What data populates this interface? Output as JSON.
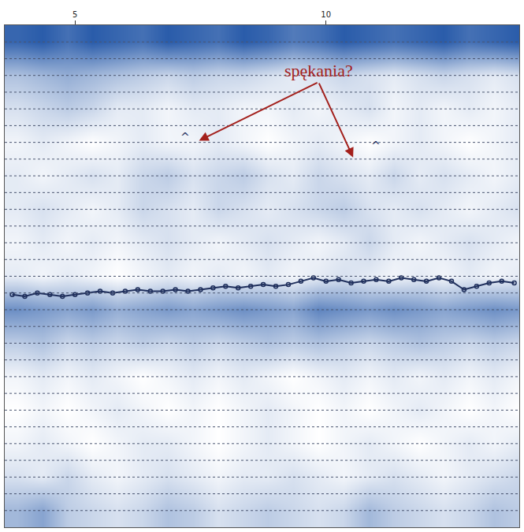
{
  "chart_data": {
    "type": "heatmap",
    "tick_labels": "x",
    "grid": true,
    "color": "#2a5caa",
    "xlim": [
      3.6,
      13.85
    ],
    "xticks": [
      5,
      10
    ],
    "ylim": [
      30,
      0
    ],
    "yticks": [
      1,
      2,
      3,
      4,
      5,
      6,
      7,
      8,
      9,
      10,
      11,
      12,
      13,
      14,
      15,
      16,
      17,
      18,
      19,
      20,
      21,
      22,
      23,
      24,
      25,
      26,
      27,
      28,
      29
    ],
    "x": [
      3.85,
      4.35,
      4.85,
      5.35,
      5.85,
      6.35,
      6.85,
      7.35,
      7.85,
      8.35,
      8.85,
      9.35,
      9.85,
      10.35,
      10.85,
      11.35,
      11.85,
      12.35,
      12.85,
      13.35,
      13.85
    ],
    "y": [
      1,
      3,
      5,
      7,
      9,
      11,
      13,
      15,
      17,
      19,
      21,
      23,
      25,
      27,
      29
    ],
    "z": [
      [
        0.85,
        0.9,
        0.8,
        0.9,
        0.85,
        0.8,
        0.9,
        0.85,
        0.8,
        0.9,
        0.85,
        0.75,
        0.8,
        0.9,
        0.85,
        0.8,
        0.85,
        0.9,
        0.8,
        0.85,
        0.9
      ],
      [
        0.4,
        0.45,
        0.5,
        0.45,
        0.4,
        0.35,
        0.3,
        0.35,
        0.3,
        0.3,
        0.25,
        0.2,
        0.25,
        0.3,
        0.25,
        0.2,
        0.25,
        0.3,
        0.25,
        0.2,
        0.25
      ],
      [
        0.25,
        0.3,
        0.35,
        0.3,
        0.2,
        0.2,
        0.15,
        0.2,
        0.2,
        0.15,
        0.15,
        0.2,
        0.15,
        0.2,
        0.25,
        0.15,
        0.2,
        0.15,
        0.2,
        0.15,
        0.2
      ],
      [
        0.15,
        0.2,
        0.15,
        0.1,
        0.15,
        0.2,
        0.15,
        0.15,
        0.2,
        0.15,
        0.1,
        0.15,
        0.2,
        0.15,
        0.1,
        0.15,
        0.2,
        0.15,
        0.1,
        0.15,
        0.2
      ],
      [
        0.2,
        0.15,
        0.2,
        0.25,
        0.2,
        0.3,
        0.35,
        0.25,
        0.3,
        0.35,
        0.25,
        0.2,
        0.3,
        0.25,
        0.2,
        0.3,
        0.2,
        0.25,
        0.2,
        0.15,
        0.2
      ],
      [
        0.2,
        0.25,
        0.2,
        0.15,
        0.2,
        0.3,
        0.25,
        0.2,
        0.3,
        0.25,
        0.2,
        0.25,
        0.3,
        0.35,
        0.25,
        0.2,
        0.25,
        0.2,
        0.15,
        0.2,
        0.25
      ],
      [
        0.15,
        0.2,
        0.15,
        0.2,
        0.15,
        0.2,
        0.25,
        0.2,
        0.15,
        0.2,
        0.25,
        0.2,
        0.15,
        0.2,
        0.3,
        0.2,
        0.15,
        0.2,
        0.25,
        0.2,
        0.15
      ],
      [
        0.2,
        0.15,
        0.2,
        0.15,
        0.1,
        0.15,
        0.2,
        0.15,
        0.2,
        0.15,
        0.2,
        0.15,
        0.2,
        0.25,
        0.2,
        0.15,
        0.2,
        0.15,
        0.2,
        0.15,
        0.2
      ],
      [
        0.65,
        0.6,
        0.55,
        0.6,
        0.5,
        0.55,
        0.6,
        0.55,
        0.6,
        0.65,
        0.6,
        0.55,
        0.7,
        0.65,
        0.6,
        0.65,
        0.6,
        0.55,
        0.6,
        0.65,
        0.6
      ],
      [
        0.35,
        0.4,
        0.3,
        0.35,
        0.3,
        0.35,
        0.3,
        0.35,
        0.3,
        0.35,
        0.4,
        0.35,
        0.4,
        0.35,
        0.3,
        0.35,
        0.4,
        0.35,
        0.3,
        0.35,
        0.3
      ],
      [
        0.15,
        0.2,
        0.15,
        0.2,
        0.15,
        0.1,
        0.15,
        0.2,
        0.15,
        0.2,
        0.15,
        0.1,
        0.15,
        0.2,
        0.15,
        0.2,
        0.15,
        0.2,
        0.15,
        0.2,
        0.15
      ],
      [
        0.1,
        0.15,
        0.1,
        0.15,
        0.2,
        0.15,
        0.1,
        0.15,
        0.1,
        0.15,
        0.2,
        0.15,
        0.1,
        0.15,
        0.1,
        0.15,
        0.2,
        0.15,
        0.1,
        0.15,
        0.1
      ],
      [
        0.15,
        0.2,
        0.15,
        0.1,
        0.15,
        0.2,
        0.2,
        0.15,
        0.1,
        0.15,
        0.2,
        0.15,
        0.1,
        0.15,
        0.2,
        0.15,
        0.1,
        0.15,
        0.2,
        0.15,
        0.2
      ],
      [
        0.25,
        0.2,
        0.3,
        0.2,
        0.15,
        0.2,
        0.25,
        0.2,
        0.15,
        0.2,
        0.2,
        0.25,
        0.2,
        0.15,
        0.2,
        0.25,
        0.2,
        0.15,
        0.2,
        0.25,
        0.3
      ],
      [
        0.45,
        0.55,
        0.35,
        0.3,
        0.25,
        0.3,
        0.4,
        0.35,
        0.25,
        0.3,
        0.35,
        0.3,
        0.25,
        0.3,
        0.45,
        0.35,
        0.3,
        0.25,
        0.3,
        0.4,
        0.35
      ]
    ],
    "series": [
      {
        "type": "line",
        "color": "#1f2f5c",
        "marker": "circle",
        "x": [
          3.75,
          4.0,
          4.25,
          4.5,
          4.75,
          5.0,
          5.25,
          5.5,
          5.75,
          6.0,
          6.25,
          6.5,
          6.75,
          7.0,
          7.25,
          7.5,
          7.75,
          8.0,
          8.25,
          8.5,
          8.75,
          9.0,
          9.25,
          9.5,
          9.75,
          10.0,
          10.25,
          10.5,
          10.75,
          11.0,
          11.25,
          11.5,
          11.75,
          12.0,
          12.25,
          12.5,
          12.75,
          13.0,
          13.25,
          13.5,
          13.75
        ],
        "values": [
          16.1,
          16.2,
          16.0,
          16.1,
          16.2,
          16.1,
          16.0,
          15.9,
          16.0,
          15.9,
          15.8,
          15.9,
          15.9,
          15.8,
          15.9,
          15.8,
          15.7,
          15.6,
          15.7,
          15.6,
          15.5,
          15.6,
          15.5,
          15.3,
          15.1,
          15.3,
          15.2,
          15.4,
          15.3,
          15.2,
          15.3,
          15.1,
          15.2,
          15.3,
          15.1,
          15.3,
          15.8,
          15.6,
          15.4,
          15.3,
          15.4
        ]
      }
    ],
    "annotations": [
      {
        "text": "spękania?",
        "x": 9.85,
        "y": 2.7,
        "color": "#a3201c",
        "arrows": [
          {
            "x": 7.47,
            "y": 6.9
          },
          {
            "x": 10.54,
            "y": 7.9
          }
        ]
      },
      {
        "text": "^",
        "x": 7.19,
        "y": 6.7,
        "color": "#1f2f5c"
      },
      {
        "text": "^",
        "x": 11.0,
        "y": 7.2,
        "color": "#1f2f5c"
      }
    ]
  }
}
